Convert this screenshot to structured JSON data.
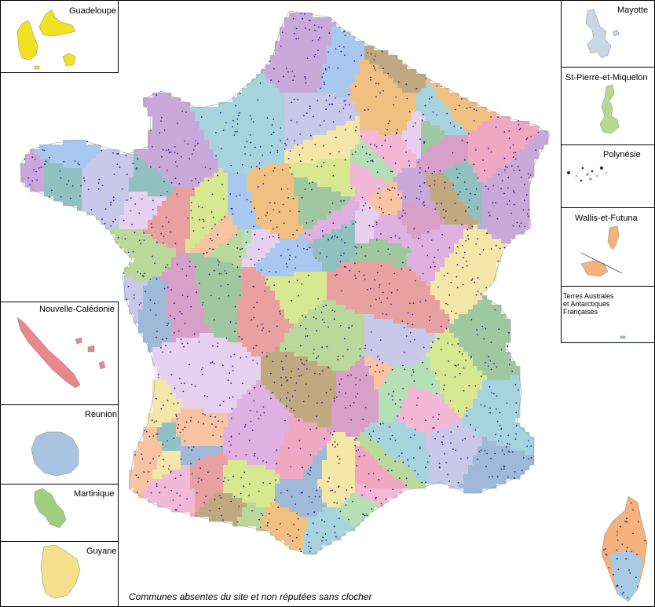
{
  "map": {
    "caption": "Communes absentes du site et non réputées sans clocher",
    "dot_color": "#2b1a8c",
    "border_color": "#000000"
  },
  "insets": {
    "guadeloupe": {
      "label": "Guadeloupe",
      "color": "#f2e022"
    },
    "mayotte": {
      "label": "Mayotte",
      "color": "#c9d6e6"
    },
    "saint_pierre": {
      "label": "St-Pierre-et-Miquelon",
      "color": "#b6d98c"
    },
    "polynesie": {
      "label": "Polynésie",
      "color": "#8fc98a"
    },
    "wallis": {
      "label": "Wallis-et-Futuna",
      "color": "#f5b27a"
    },
    "taaf": {
      "label_lines": [
        "Terres Australes",
        "et Antarctiques",
        "Françaises"
      ],
      "color": "#7fd0c8"
    },
    "nouvelle_caledonie": {
      "label": "Nouvelle-Calédonie",
      "color": "#e8888a"
    },
    "reunion": {
      "label": "Réunion",
      "color": "#a9c4e0"
    },
    "martinique": {
      "label": "Martinique",
      "color": "#9fcf7e"
    },
    "guyane": {
      "label": "Guyane",
      "color": "#f3df8c"
    }
  },
  "palette": [
    "#f3b8d6",
    "#f6c4a0",
    "#b9d89a",
    "#c9a9d9",
    "#a6d3de",
    "#f4e6a6",
    "#9fb9d8",
    "#d6a0c8",
    "#e8a0a0",
    "#b5e0b5",
    "#f0c080",
    "#c8c8e8",
    "#a0c8a0",
    "#e8d0f0",
    "#d8e890",
    "#90c0c0",
    "#f0a8c0",
    "#c0a880",
    "#a8c8f0",
    "#e0b0e0"
  ]
}
